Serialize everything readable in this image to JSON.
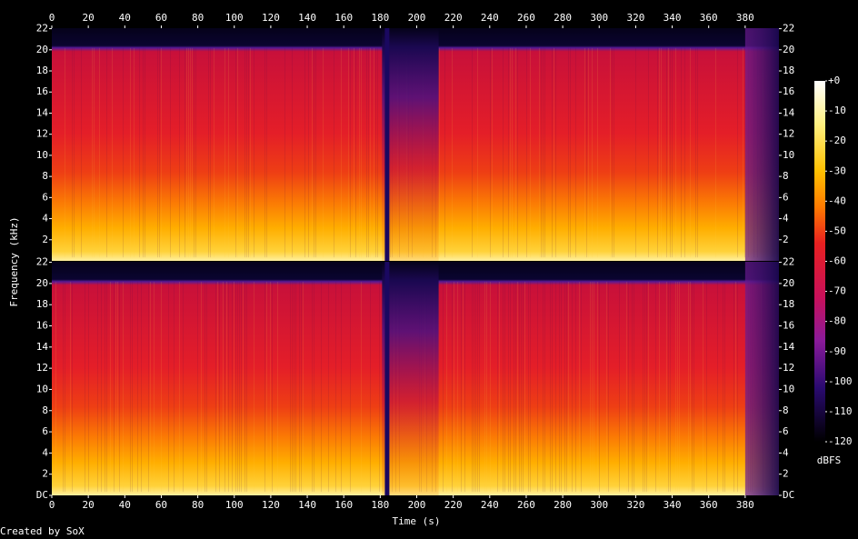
{
  "chart_data": {
    "type": "spectrogram",
    "xlabel": "Time (s)",
    "ylabel": "Frequency (kHz)",
    "xlim": [
      0,
      398.5
    ],
    "xticks": [
      0,
      20,
      40,
      60,
      80,
      100,
      120,
      140,
      160,
      180,
      200,
      220,
      240,
      260,
      280,
      300,
      320,
      340,
      360,
      380
    ],
    "panels": [
      {
        "ylim": [
          0,
          22.05
        ],
        "yticks": [
          2,
          4,
          6,
          8,
          10,
          12,
          14,
          16,
          18,
          20,
          22
        ]
      },
      {
        "ylim": [
          0,
          22.05
        ],
        "yticks": [
          {
            "value": 0,
            "label": "DC"
          },
          2,
          4,
          6,
          8,
          10,
          12,
          14,
          16,
          18,
          20,
          22
        ]
      }
    ],
    "colorbar": {
      "label": "dBFS",
      "lim": [
        -120,
        0
      ],
      "ticks": [
        {
          "value": 0,
          "label": "+0"
        },
        -10,
        -20,
        -30,
        -40,
        -50,
        -60,
        -70,
        -80,
        -90,
        -100,
        -110,
        -120
      ]
    },
    "credit": "Created by SoX"
  }
}
